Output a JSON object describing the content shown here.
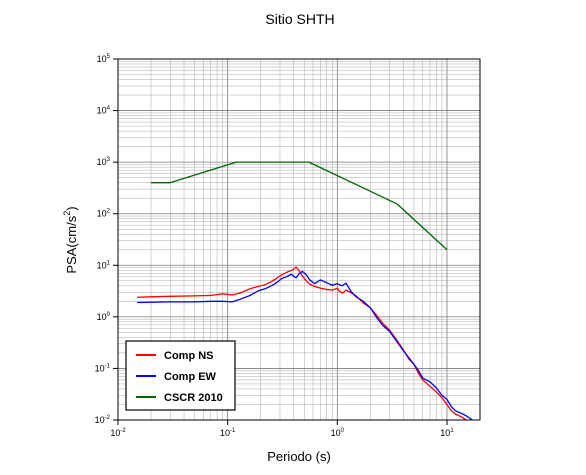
{
  "chart_data": {
    "type": "line",
    "title": "Sitio SHTH",
    "xlabel": "Periodo (s)",
    "ylabel_main": "PSA(cm/s",
    "ylabel_sup": "2",
    "ylabel_end": ")",
    "xscale": "log",
    "yscale": "log",
    "xlim": [
      0.01,
      20
    ],
    "ylim": [
      0.01,
      100000
    ],
    "x_ticks": [
      {
        "base": "10",
        "exp": "-2",
        "value": 0.01
      },
      {
        "base": "10",
        "exp": "-1",
        "value": 0.1
      },
      {
        "base": "10",
        "exp": "0",
        "value": 1
      },
      {
        "base": "10",
        "exp": "1",
        "value": 10
      }
    ],
    "y_ticks": [
      {
        "base": "10",
        "exp": "-2",
        "value": 0.01
      },
      {
        "base": "10",
        "exp": "-1",
        "value": 0.1
      },
      {
        "base": "10",
        "exp": "0",
        "value": 1
      },
      {
        "base": "10",
        "exp": "1",
        "value": 10
      },
      {
        "base": "10",
        "exp": "2",
        "value": 100
      },
      {
        "base": "10",
        "exp": "3",
        "value": 1000
      },
      {
        "base": "10",
        "exp": "4",
        "value": 10000
      },
      {
        "base": "10",
        "exp": "5",
        "value": 100000
      }
    ],
    "grid": true,
    "legend_position": "bottom-left",
    "series": [
      {
        "name": "Comp NS",
        "color": "#ff0000",
        "points": [
          [
            0.015,
            2.4
          ],
          [
            0.02,
            2.45
          ],
          [
            0.03,
            2.5
          ],
          [
            0.05,
            2.55
          ],
          [
            0.07,
            2.6
          ],
          [
            0.09,
            2.8
          ],
          [
            0.11,
            2.65
          ],
          [
            0.13,
            2.9
          ],
          [
            0.16,
            3.5
          ],
          [
            0.19,
            3.9
          ],
          [
            0.22,
            4.2
          ],
          [
            0.25,
            4.8
          ],
          [
            0.28,
            5.6
          ],
          [
            0.31,
            6.5
          ],
          [
            0.35,
            7.4
          ],
          [
            0.39,
            8.1
          ],
          [
            0.42,
            9.2
          ],
          [
            0.45,
            7.8
          ],
          [
            0.48,
            6.2
          ],
          [
            0.52,
            5.0
          ],
          [
            0.56,
            4.3
          ],
          [
            0.62,
            3.9
          ],
          [
            0.7,
            3.6
          ],
          [
            0.8,
            3.4
          ],
          [
            0.9,
            3.3
          ],
          [
            1.0,
            3.6
          ],
          [
            1.05,
            3.1
          ],
          [
            1.12,
            2.9
          ],
          [
            1.2,
            3.3
          ],
          [
            1.35,
            2.9
          ],
          [
            1.5,
            2.5
          ],
          [
            1.7,
            1.9
          ],
          [
            2.0,
            1.5
          ],
          [
            2.3,
            1.05
          ],
          [
            2.6,
            0.75
          ],
          [
            3.0,
            0.55
          ],
          [
            3.5,
            0.35
          ],
          [
            4.0,
            0.23
          ],
          [
            4.5,
            0.15
          ],
          [
            5.0,
            0.12
          ],
          [
            5.5,
            0.08
          ],
          [
            6.0,
            0.06
          ],
          [
            7.0,
            0.045
          ],
          [
            8.0,
            0.035
          ],
          [
            9.0,
            0.027
          ],
          [
            10.0,
            0.02
          ],
          [
            11.0,
            0.015
          ],
          [
            12.0,
            0.013
          ],
          [
            13.0,
            0.012
          ],
          [
            14.0,
            0.011
          ],
          [
            15.0,
            0.01
          ]
        ]
      },
      {
        "name": "Comp EW",
        "color": "#0000ff",
        "points": [
          [
            0.015,
            1.9
          ],
          [
            0.02,
            1.92
          ],
          [
            0.03,
            1.95
          ],
          [
            0.05,
            1.95
          ],
          [
            0.07,
            2.0
          ],
          [
            0.09,
            2.0
          ],
          [
            0.11,
            1.95
          ],
          [
            0.13,
            2.2
          ],
          [
            0.16,
            2.6
          ],
          [
            0.19,
            3.2
          ],
          [
            0.22,
            3.5
          ],
          [
            0.25,
            4.0
          ],
          [
            0.28,
            4.6
          ],
          [
            0.31,
            5.5
          ],
          [
            0.35,
            6.1
          ],
          [
            0.38,
            6.7
          ],
          [
            0.42,
            5.7
          ],
          [
            0.45,
            6.9
          ],
          [
            0.48,
            7.6
          ],
          [
            0.52,
            6.6
          ],
          [
            0.56,
            5.2
          ],
          [
            0.62,
            4.4
          ],
          [
            0.7,
            5.2
          ],
          [
            0.8,
            4.6
          ],
          [
            0.9,
            4.1
          ],
          [
            1.0,
            4.4
          ],
          [
            1.1,
            4.0
          ],
          [
            1.2,
            4.5
          ],
          [
            1.35,
            3.0
          ],
          [
            1.5,
            2.4
          ],
          [
            1.7,
            2.05
          ],
          [
            2.0,
            1.5
          ],
          [
            2.3,
            0.95
          ],
          [
            2.6,
            0.68
          ],
          [
            3.0,
            0.52
          ],
          [
            3.5,
            0.33
          ],
          [
            4.0,
            0.22
          ],
          [
            4.5,
            0.16
          ],
          [
            5.0,
            0.12
          ],
          [
            5.5,
            0.09
          ],
          [
            6.0,
            0.065
          ],
          [
            7.0,
            0.055
          ],
          [
            8.0,
            0.042
          ],
          [
            9.0,
            0.03
          ],
          [
            10.0,
            0.025
          ],
          [
            11.0,
            0.018
          ],
          [
            12.0,
            0.015
          ],
          [
            13.0,
            0.014
          ],
          [
            14.0,
            0.013
          ],
          [
            15.0,
            0.012
          ],
          [
            16.0,
            0.011
          ],
          [
            17.0,
            0.01
          ]
        ]
      },
      {
        "name": "CSCR 2010",
        "color": "#006600",
        "points": [
          [
            0.02,
            400
          ],
          [
            0.03,
            400
          ],
          [
            0.12,
            1000
          ],
          [
            0.55,
            1000
          ],
          [
            3.5,
            155
          ],
          [
            10.0,
            20
          ]
        ]
      }
    ]
  }
}
